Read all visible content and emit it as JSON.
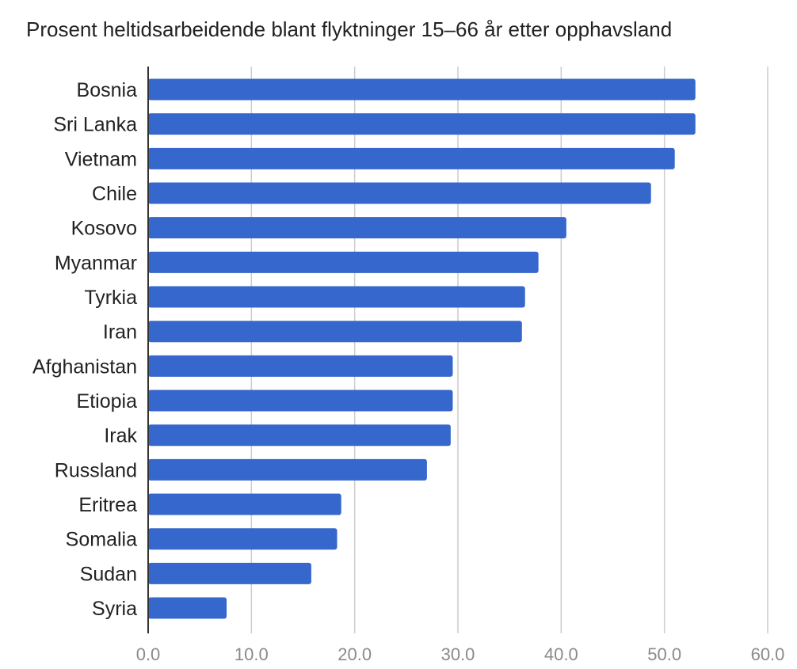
{
  "chart_data": {
    "type": "bar",
    "orientation": "horizontal",
    "title": "Prosent heltidsarbeidende blant flyktninger 15–66 år etter opphavsland",
    "xlabel": "",
    "ylabel": "",
    "categories": [
      "Bosnia",
      "Sri Lanka",
      "Vietnam",
      "Chile",
      "Kosovo",
      "Myanmar",
      "Tyrkia",
      "Iran",
      "Afghanistan",
      "Etiopia",
      "Irak",
      "Russland",
      "Eritrea",
      "Somalia",
      "Sudan",
      "Syria"
    ],
    "values": [
      53.0,
      53.0,
      51.0,
      48.7,
      40.5,
      37.8,
      36.5,
      36.2,
      29.5,
      29.5,
      29.3,
      27.0,
      18.7,
      18.3,
      15.8,
      7.6
    ],
    "xlim": [
      0,
      60
    ],
    "ticks": [
      "0.0",
      "10.0",
      "20.0",
      "30.0",
      "40.0",
      "50.0",
      "60.0"
    ],
    "grid": true,
    "legend": "none",
    "bar_color": "#3567cc",
    "grid_color": "#cccccc",
    "axis_color": "#333333"
  }
}
